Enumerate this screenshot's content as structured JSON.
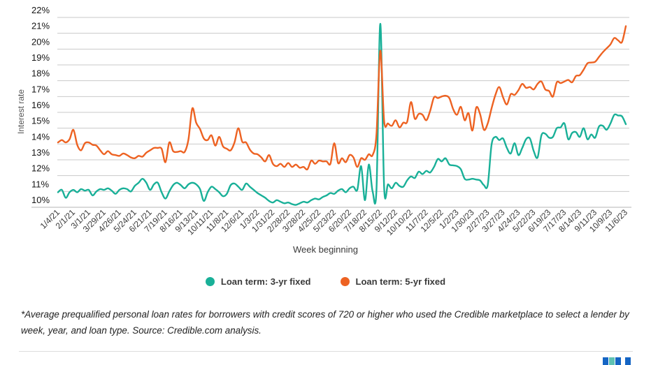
{
  "footnote": "*Average prequalified personal loan rates for borrowers with credit scores of 720 or higher who used the Credible marketplace to select a lender by week, year, and loan type. Source: Credible.com analysis.",
  "colors": {
    "teal": "#19b098",
    "orange": "#ed6222",
    "grid": "#c9c9c9",
    "grid_bottom": "#b5b5b5",
    "y_tick_text": "#141414",
    "x_tick_text": "#3a3a3a",
    "logo_blue": "#1565c4",
    "logo_teal": "#5fc2b2"
  },
  "chart_data": {
    "type": "line",
    "title": "",
    "xlabel": "Week beginning",
    "ylabel": "Interest rate",
    "ylim": [
      10,
      22
    ],
    "grid": true,
    "legend_position": "bottom",
    "y_tick_labels": [
      "22%",
      "21%",
      "20%",
      "19%",
      "18%",
      "17%",
      "16%",
      "15%",
      "14%",
      "13%",
      "12%",
      "11%",
      "10%"
    ],
    "x_tick_every": 4,
    "x_tick_labels": [
      "1/4/21",
      "2/1/21",
      "3/1/21",
      "3/29/21",
      "4/26/21",
      "5/24/21",
      "6/21/21",
      "7/19/21",
      "8/16/21",
      "9/13/21",
      "10/11/21",
      "11/8/21",
      "12/6/21",
      "1/3/22",
      "1/31/22",
      "2/28/22",
      "3/28/22",
      "4/25/22",
      "5/23/22",
      "6/20/22",
      "7/18/22",
      "8/15/22",
      "9/12/22",
      "10/10/22",
      "11/7/22",
      "12/5/22",
      "1/2/23",
      "1/30/23",
      "2/27/23",
      "3/27/23",
      "4/24/23",
      "5/22/23",
      "6/19/23",
      "7/17/23",
      "8/14/23",
      "9/11/23",
      "10/9/23",
      "11/6/23"
    ],
    "series": [
      {
        "name": "Loan term: 3-yr fixed",
        "color": "#19b098",
        "values": [
          10.95,
          11.1,
          10.6,
          10.95,
          11.1,
          10.95,
          11.15,
          11.05,
          11.1,
          10.75,
          11.0,
          11.15,
          11.1,
          11.2,
          11.05,
          10.85,
          11.1,
          11.2,
          11.15,
          11.0,
          11.35,
          11.55,
          11.8,
          11.55,
          11.1,
          11.45,
          11.55,
          10.95,
          10.55,
          11.0,
          11.4,
          11.55,
          11.4,
          11.2,
          11.45,
          11.55,
          11.45,
          11.15,
          10.4,
          10.95,
          11.3,
          11.15,
          10.95,
          10.7,
          10.85,
          11.4,
          11.5,
          11.3,
          11.1,
          11.5,
          11.3,
          11.1,
          10.9,
          10.75,
          10.6,
          10.4,
          10.3,
          10.45,
          10.35,
          10.25,
          10.3,
          10.2,
          10.15,
          10.25,
          10.35,
          10.3,
          10.45,
          10.55,
          10.5,
          10.65,
          10.75,
          10.9,
          10.85,
          11.05,
          11.15,
          10.95,
          11.2,
          11.3,
          11.1,
          12.6,
          10.45,
          12.7,
          11.0,
          11.1,
          21.6,
          11.25,
          11.45,
          11.2,
          11.55,
          11.35,
          11.3,
          11.7,
          11.95,
          11.85,
          12.25,
          12.1,
          12.3,
          12.2,
          12.55,
          13.05,
          12.9,
          13.1,
          12.7,
          12.65,
          12.6,
          12.4,
          11.8,
          11.75,
          11.8,
          11.75,
          11.7,
          11.4,
          11.4,
          13.95,
          14.45,
          14.25,
          14.35,
          13.75,
          13.4,
          14.05,
          13.3,
          13.75,
          14.3,
          14.35,
          13.55,
          13.15,
          14.55,
          14.65,
          14.4,
          14.45,
          15.0,
          15.05,
          15.3,
          14.3,
          14.7,
          14.75,
          14.45,
          15.0,
          14.3,
          14.6,
          14.4,
          15.1,
          15.15,
          14.9,
          15.3,
          15.85,
          15.8,
          15.75,
          15.25
        ]
      },
      {
        "name": "Loan term: 5-yr fixed",
        "color": "#ed6222",
        "values": [
          14.1,
          14.25,
          14.1,
          14.3,
          14.9,
          13.95,
          13.6,
          14.05,
          14.1,
          13.95,
          13.9,
          13.6,
          13.35,
          13.55,
          13.35,
          13.3,
          13.25,
          13.4,
          13.3,
          13.15,
          13.1,
          13.25,
          13.2,
          13.45,
          13.6,
          13.75,
          13.75,
          13.7,
          12.85,
          14.1,
          13.55,
          13.5,
          13.55,
          13.5,
          14.3,
          16.25,
          15.35,
          14.95,
          14.35,
          14.25,
          14.55,
          13.9,
          14.45,
          13.85,
          13.7,
          13.6,
          14.1,
          15.0,
          14.15,
          14.1,
          13.65,
          13.4,
          13.35,
          13.15,
          12.9,
          13.3,
          12.75,
          12.6,
          12.75,
          12.55,
          12.8,
          12.55,
          12.7,
          12.5,
          12.55,
          12.4,
          12.95,
          12.75,
          12.95,
          12.9,
          12.9,
          12.75,
          14.05,
          12.8,
          13.1,
          12.85,
          13.3,
          13.15,
          12.55,
          13.1,
          13.0,
          13.35,
          13.3,
          14.6,
          19.9,
          15.45,
          15.3,
          15.15,
          15.5,
          15.05,
          15.35,
          15.4,
          16.65,
          15.6,
          15.9,
          15.85,
          15.5,
          16.1,
          16.95,
          16.9,
          17.0,
          17.05,
          16.9,
          16.2,
          15.85,
          16.35,
          15.5,
          15.95,
          14.85,
          16.3,
          15.9,
          14.9,
          15.3,
          16.25,
          17.1,
          17.6,
          16.95,
          16.5,
          17.15,
          17.1,
          17.4,
          17.8,
          17.55,
          17.6,
          17.45,
          17.8,
          17.95,
          17.45,
          17.35,
          17.0,
          17.9,
          17.85,
          17.95,
          18.05,
          17.9,
          18.3,
          18.35,
          18.7,
          19.1,
          19.15,
          19.2,
          19.5,
          19.8,
          20.05,
          20.3,
          20.7,
          20.55,
          20.45,
          21.45
        ]
      }
    ]
  }
}
